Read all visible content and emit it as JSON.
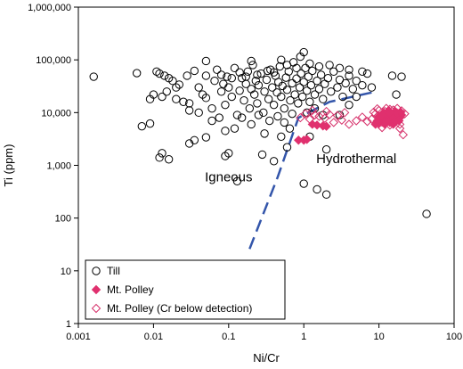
{
  "chart_data": {
    "type": "scatter",
    "title": "",
    "xlabel": "Ni/Cr",
    "ylabel": "Ti (ppm)",
    "x_scale": "log",
    "y_scale": "log",
    "xlim": [
      0.001,
      100
    ],
    "ylim": [
      1,
      1000000
    ],
    "x_ticks": [
      0.001,
      0.01,
      0.1,
      1,
      10,
      100
    ],
    "x_tick_labels": [
      "0.001",
      "0.01",
      "0.1",
      "1",
      "10",
      "100"
    ],
    "y_ticks": [
      1,
      10,
      100,
      1000,
      10000,
      100000,
      1000000
    ],
    "y_tick_labels": [
      "1",
      "10",
      "100",
      "1,000",
      "10,000",
      "100,000",
      "1,000,000"
    ],
    "grid": false,
    "legend_position": "bottom-left",
    "annotations": [
      {
        "text": "Igneous",
        "x": 0.1,
        "y": 500
      },
      {
        "text": "Hydrothermal",
        "x": 5,
        "y": 1100
      }
    ],
    "boundary_line": {
      "style": "dashed",
      "color": "#3355aa",
      "points": [
        [
          0.19,
          26
        ],
        [
          0.45,
          600
        ],
        [
          0.85,
          8000
        ],
        [
          2.2,
          16000
        ],
        [
          8,
          24000
        ]
      ]
    },
    "series": [
      {
        "name": "Till",
        "marker": "open-circle",
        "color": "#000000",
        "points": [
          [
            0.0016,
            48000
          ],
          [
            0.006,
            56000
          ],
          [
            0.007,
            5500
          ],
          [
            0.009,
            6200
          ],
          [
            0.009,
            18000
          ],
          [
            0.01,
            22000
          ],
          [
            0.012,
            1400
          ],
          [
            0.013,
            1700
          ],
          [
            0.016,
            1300
          ],
          [
            0.03,
            2600
          ],
          [
            0.035,
            3000
          ],
          [
            0.05,
            3400
          ],
          [
            0.09,
            1500
          ],
          [
            0.1,
            1700
          ],
          [
            0.13,
            500
          ],
          [
            0.28,
            1600
          ],
          [
            0.6,
            2200
          ],
          [
            1,
            450
          ],
          [
            1.5,
            350
          ],
          [
            2,
            280
          ],
          [
            1.2,
            3500
          ],
          [
            2,
            2000
          ],
          [
            0.4,
            1200
          ],
          [
            3,
            9000
          ],
          [
            4,
            14000
          ],
          [
            5,
            20000
          ],
          [
            15,
            50000
          ],
          [
            17,
            22000
          ],
          [
            20,
            48000
          ],
          [
            43,
            120
          ],
          [
            1,
            140000
          ],
          [
            0.9,
            115000
          ],
          [
            0.05,
            95000
          ],
          [
            0.5,
            100000
          ],
          [
            0.2,
            95000
          ],
          [
            0.011,
            60000
          ],
          [
            0.012,
            55000
          ],
          [
            0.014,
            50000
          ],
          [
            0.016,
            45000
          ],
          [
            0.018,
            40000
          ],
          [
            0.02,
            30000
          ],
          [
            0.022,
            34000
          ],
          [
            0.015,
            25000
          ],
          [
            0.013,
            20000
          ],
          [
            0.02,
            18000
          ],
          [
            0.025,
            16000
          ],
          [
            0.03,
            15000
          ],
          [
            0.028,
            50000
          ],
          [
            0.035,
            62000
          ],
          [
            0.04,
            30000
          ],
          [
            0.045,
            22000
          ],
          [
            0.05,
            19000
          ],
          [
            0.06,
            12000
          ],
          [
            0.065,
            40000
          ],
          [
            0.07,
            65000
          ],
          [
            0.075,
            8000
          ],
          [
            0.08,
            25000
          ],
          [
            0.085,
            35000
          ],
          [
            0.09,
            14000
          ],
          [
            0.095,
            48000
          ],
          [
            0.1,
            30000
          ],
          [
            0.11,
            20000
          ],
          [
            0.12,
            70000
          ],
          [
            0.13,
            9000
          ],
          [
            0.14,
            26000
          ],
          [
            0.15,
            45000
          ],
          [
            0.16,
            17000
          ],
          [
            0.17,
            35000
          ],
          [
            0.18,
            60000
          ],
          [
            0.19,
            12000
          ],
          [
            0.2,
            28000
          ],
          [
            0.21,
            80000
          ],
          [
            0.22,
            22000
          ],
          [
            0.23,
            40000
          ],
          [
            0.24,
            15000
          ],
          [
            0.25,
            33000
          ],
          [
            0.27,
            55000
          ],
          [
            0.29,
            10000
          ],
          [
            0.3,
            25000
          ],
          [
            0.32,
            42000
          ],
          [
            0.34,
            18000
          ],
          [
            0.36,
            65000
          ],
          [
            0.38,
            30000
          ],
          [
            0.4,
            14000
          ],
          [
            0.42,
            50000
          ],
          [
            0.44,
            24000
          ],
          [
            0.46,
            38000
          ],
          [
            0.48,
            75000
          ],
          [
            0.5,
            20000
          ],
          [
            0.52,
            32000
          ],
          [
            0.55,
            12000
          ],
          [
            0.58,
            46000
          ],
          [
            0.6,
            27000
          ],
          [
            0.63,
            60000
          ],
          [
            0.66,
            17000
          ],
          [
            0.7,
            36000
          ],
          [
            0.73,
            90000
          ],
          [
            0.76,
            22000
          ],
          [
            0.8,
            44000
          ],
          [
            0.84,
            15000
          ],
          [
            0.88,
            30000
          ],
          [
            0.92,
            55000
          ],
          [
            0.96,
            20000
          ],
          [
            1,
            38000
          ],
          [
            1.05,
            70000
          ],
          [
            1.1,
            26000
          ],
          [
            1.15,
            48000
          ],
          [
            1.2,
            16000
          ],
          [
            1.25,
            33000
          ],
          [
            1.3,
            62000
          ],
          [
            1.4,
            22000
          ],
          [
            1.5,
            40000
          ],
          [
            1.6,
            28000
          ],
          [
            1.7,
            52000
          ],
          [
            1.8,
            18000
          ],
          [
            1.9,
            35000
          ],
          [
            2.1,
            45000
          ],
          [
            2.3,
            25000
          ],
          [
            2.5,
            60000
          ],
          [
            2.8,
            30000
          ],
          [
            3,
            42000
          ],
          [
            3.3,
            20000
          ],
          [
            3.6,
            36000
          ],
          [
            4,
            50000
          ],
          [
            4.5,
            28000
          ],
          [
            5,
            40000
          ],
          [
            6,
            33000
          ],
          [
            7,
            55000
          ],
          [
            8,
            30000
          ],
          [
            0.15,
            8000
          ],
          [
            0.25,
            9000
          ],
          [
            0.35,
            7000
          ],
          [
            0.45,
            8500
          ],
          [
            0.55,
            6500
          ],
          [
            0.7,
            9500
          ],
          [
            0.2,
            6000
          ],
          [
            0.12,
            5000
          ],
          [
            0.3,
            4000
          ],
          [
            0.09,
            4500
          ],
          [
            0.06,
            7000
          ],
          [
            0.04,
            10000
          ],
          [
            0.03,
            11000
          ],
          [
            0.05,
            50000
          ],
          [
            0.08,
            52000
          ],
          [
            0.11,
            45000
          ],
          [
            0.14,
            58000
          ],
          [
            0.17,
            48000
          ],
          [
            0.24,
            52000
          ],
          [
            0.33,
            62000
          ],
          [
            0.4,
            58000
          ],
          [
            0.6,
            80000
          ],
          [
            0.8,
            70000
          ],
          [
            1.2,
            85000
          ],
          [
            1.6,
            75000
          ],
          [
            2.2,
            80000
          ],
          [
            3,
            70000
          ],
          [
            4,
            65000
          ],
          [
            6,
            60000
          ],
          [
            1.1,
            10000
          ],
          [
            1.4,
            12000
          ],
          [
            1.8,
            9000
          ],
          [
            0.65,
            5000
          ],
          [
            0.5,
            3500
          ]
        ]
      },
      {
        "name": "Mt. Polley",
        "marker": "filled-diamond",
        "color": "#e0306e",
        "points": [
          [
            0.85,
            3000
          ],
          [
            1,
            3000
          ],
          [
            1.1,
            3100
          ],
          [
            1.3,
            6000
          ],
          [
            1.5,
            5800
          ],
          [
            1.8,
            5600
          ],
          [
            2,
            5500
          ],
          [
            9,
            6000
          ],
          [
            10,
            6200
          ],
          [
            11,
            6600
          ],
          [
            12,
            7000
          ],
          [
            13,
            7500
          ],
          [
            14,
            6500
          ],
          [
            15,
            8000
          ],
          [
            16,
            7200
          ],
          [
            17,
            8800
          ],
          [
            18,
            9500
          ],
          [
            19,
            8000
          ],
          [
            20,
            9000
          ],
          [
            10.5,
            7800
          ],
          [
            12.5,
            9200
          ],
          [
            14.5,
            8500
          ],
          [
            11.5,
            10000
          ],
          [
            16.5,
            10500
          ],
          [
            13.5,
            11000
          ],
          [
            9.5,
            7000
          ],
          [
            18.5,
            7000
          ],
          [
            15.5,
            6000
          ],
          [
            12,
            6000
          ],
          [
            17.5,
            9800
          ],
          [
            10,
            8500
          ],
          [
            14,
            9800
          ],
          [
            19.5,
            10200
          ],
          [
            16,
            6800
          ],
          [
            11,
            9000
          ]
        ]
      },
      {
        "name": "Mt. Polley (Cr below detection)",
        "marker": "open-diamond",
        "color": "#d6306a",
        "points": [
          [
            0.9,
            8000
          ],
          [
            1.05,
            9500
          ],
          [
            1.2,
            7500
          ],
          [
            1.4,
            9000
          ],
          [
            1.6,
            8500
          ],
          [
            1.9,
            7800
          ],
          [
            2.2,
            9200
          ],
          [
            2.5,
            6500
          ],
          [
            2.8,
            8800
          ],
          [
            3.2,
            7200
          ],
          [
            4,
            6000
          ],
          [
            5,
            7000
          ],
          [
            6,
            8200
          ],
          [
            7,
            6800
          ],
          [
            8,
            7500
          ],
          [
            9,
            9500
          ],
          [
            10,
            11000
          ],
          [
            11,
            7000
          ],
          [
            12,
            10500
          ],
          [
            13,
            8000
          ],
          [
            14,
            11500
          ],
          [
            15,
            9000
          ],
          [
            16,
            6500
          ],
          [
            17,
            10000
          ],
          [
            18,
            8200
          ],
          [
            19,
            6000
          ],
          [
            20,
            10800
          ],
          [
            21,
            3800
          ],
          [
            22,
            9500
          ],
          [
            19,
            5000
          ],
          [
            12.5,
            12000
          ],
          [
            9.5,
            11800
          ],
          [
            15.5,
            11200
          ],
          [
            8.5,
            10200
          ],
          [
            17.5,
            12000
          ],
          [
            11,
            5200
          ],
          [
            14,
            5800
          ],
          [
            1.3,
            11000
          ],
          [
            2,
            10500
          ],
          [
            3.5,
            10000
          ]
        ]
      }
    ]
  }
}
